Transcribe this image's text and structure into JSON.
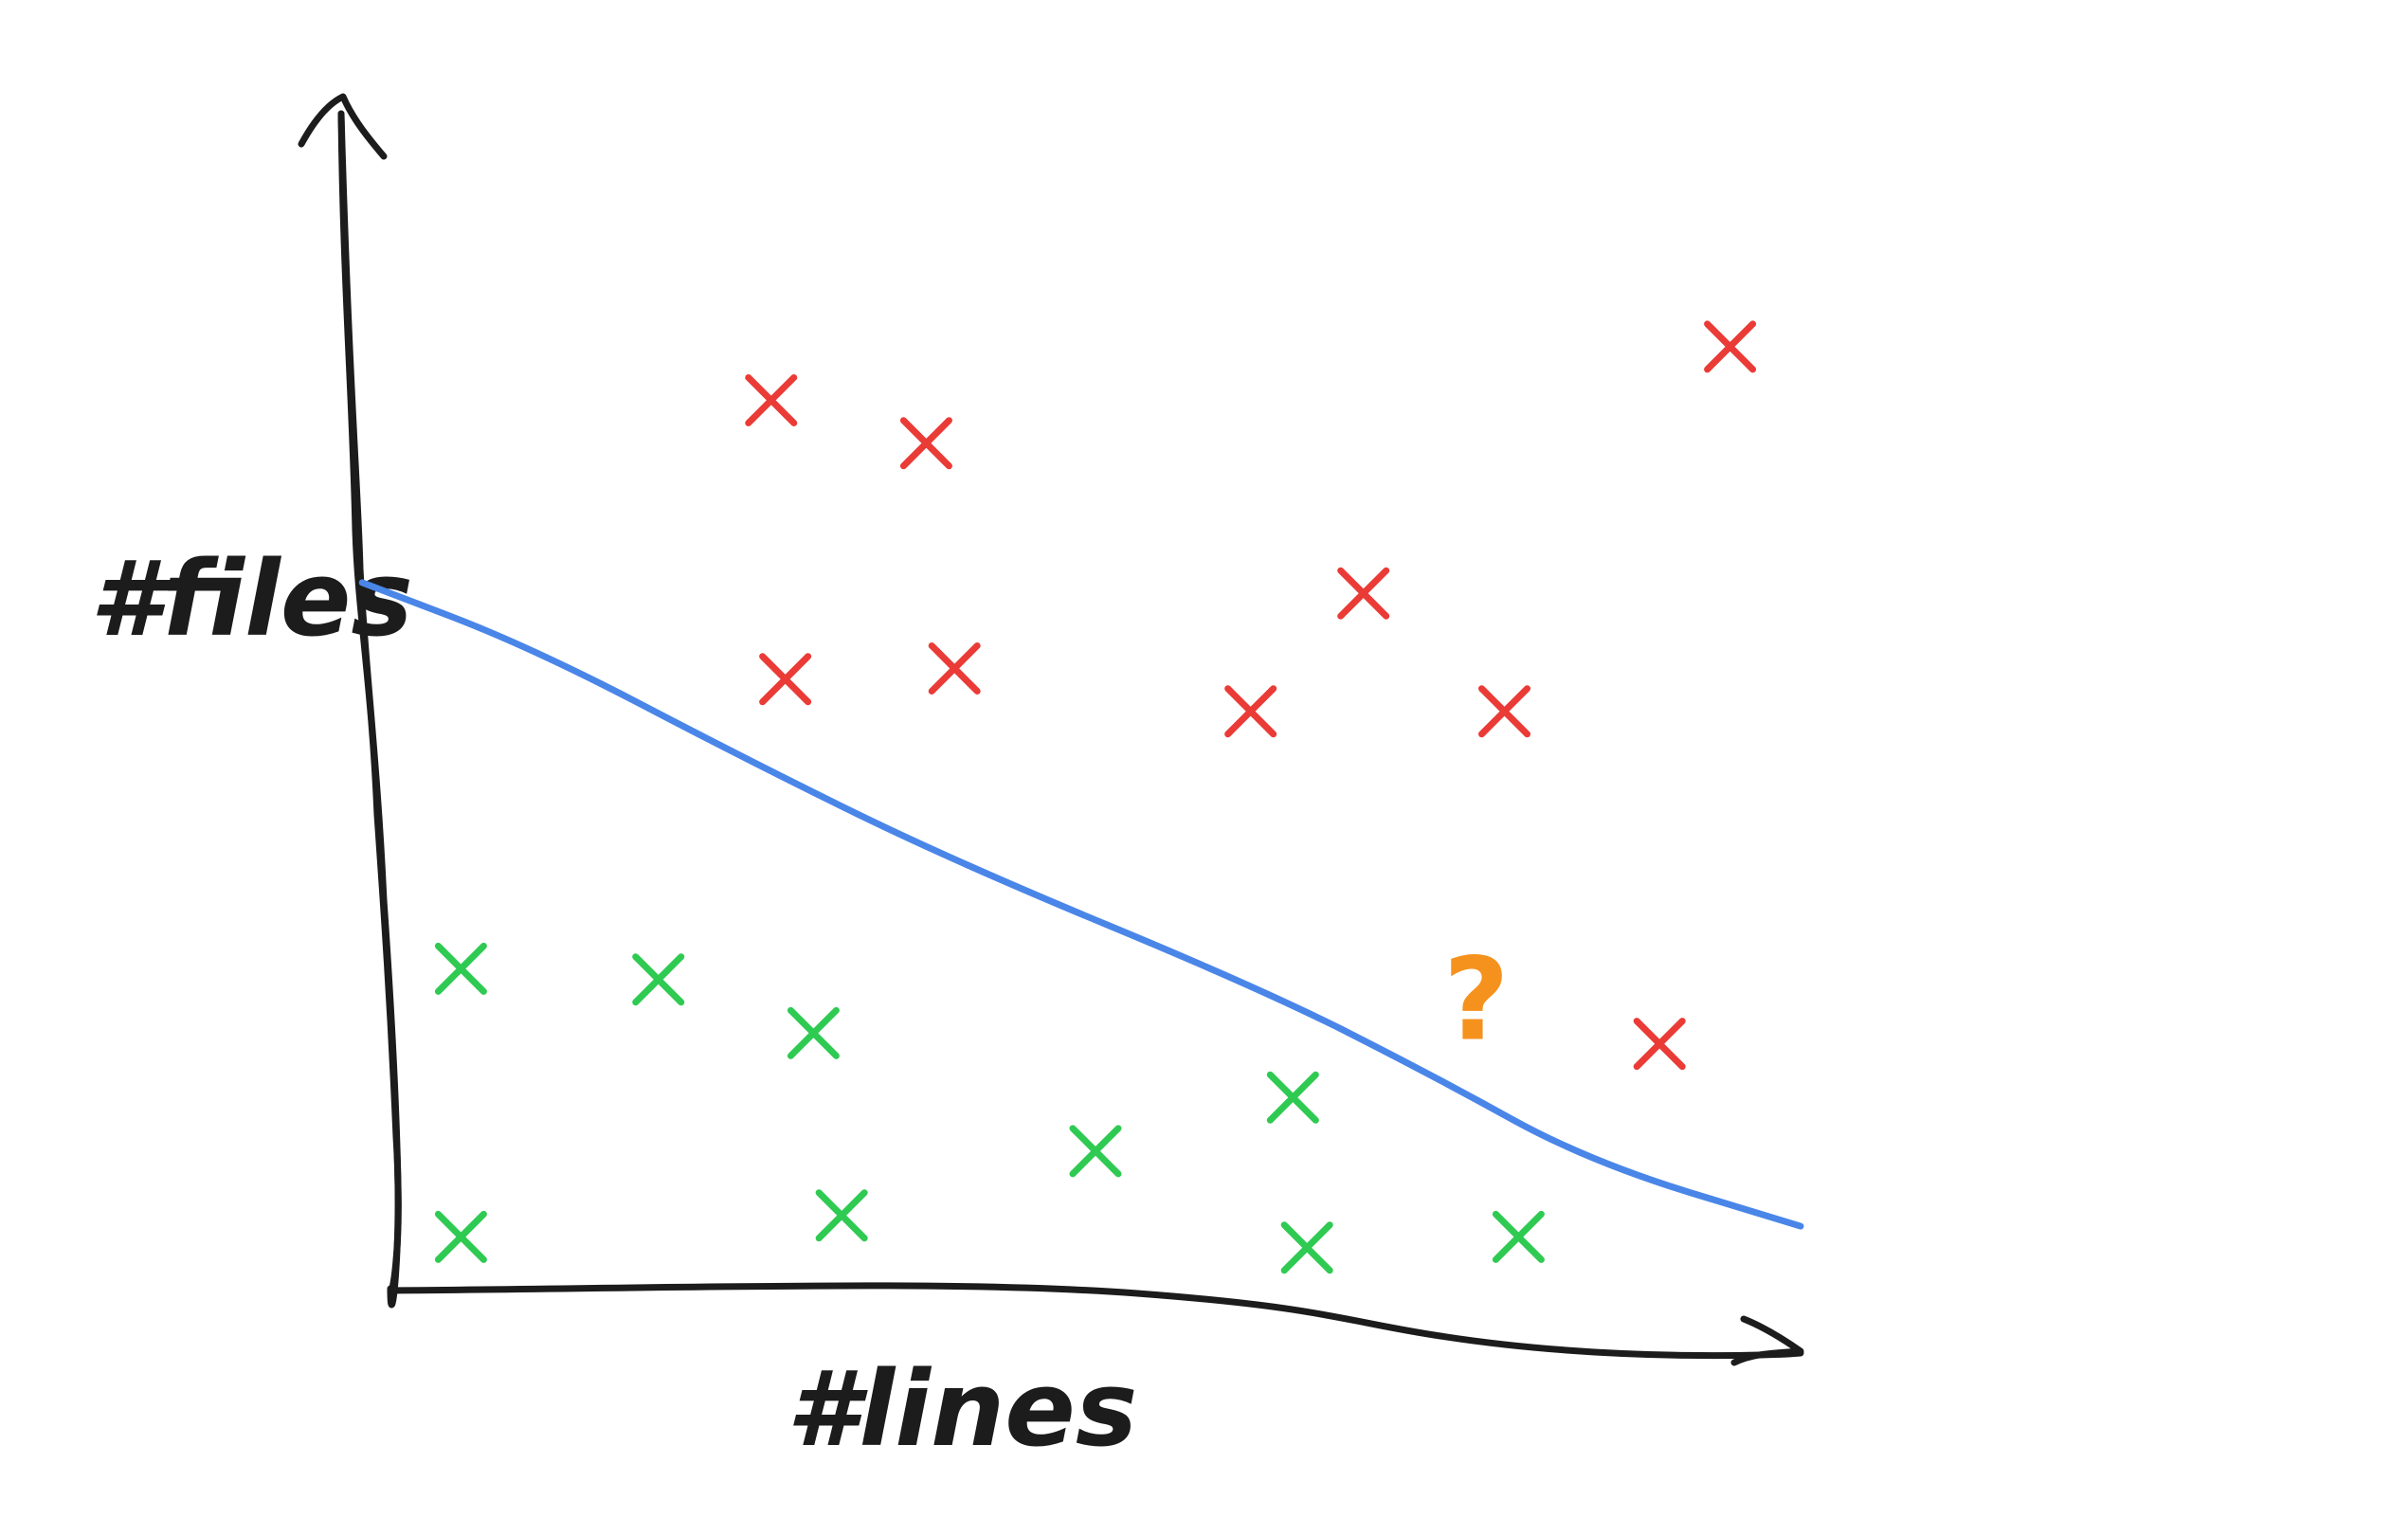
{
  "chart_data": {
    "type": "scatter",
    "title": "",
    "xlabel": "#lines",
    "ylabel": "#files",
    "xlim": [
      0,
      100
    ],
    "ylim": [
      0,
      100
    ],
    "grid": false,
    "legend": "none",
    "series": [
      {
        "color": "#ea3b36",
        "marker": "x",
        "points": [
          {
            "x": 27,
            "y": 83
          },
          {
            "x": 38,
            "y": 79
          },
          {
            "x": 95,
            "y": 88
          },
          {
            "x": 69,
            "y": 65
          },
          {
            "x": 28,
            "y": 57
          },
          {
            "x": 40,
            "y": 58
          },
          {
            "x": 61,
            "y": 54
          },
          {
            "x": 79,
            "y": 54
          },
          {
            "x": 90,
            "y": 23
          }
        ]
      },
      {
        "color": "#2fca52",
        "marker": "x",
        "points": [
          {
            "x": 5,
            "y": 30
          },
          {
            "x": 19,
            "y": 29
          },
          {
            "x": 30,
            "y": 24
          },
          {
            "x": 64,
            "y": 18
          },
          {
            "x": 50,
            "y": 13
          },
          {
            "x": 5,
            "y": 5
          },
          {
            "x": 32,
            "y": 7
          },
          {
            "x": 65,
            "y": 4
          },
          {
            "x": 80,
            "y": 5
          }
        ]
      },
      {
        "color": "#f5921e",
        "marker": "?",
        "label": "?",
        "points": [
          {
            "x": 77,
            "y": 27
          }
        ]
      }
    ],
    "boundary": {
      "color": "#4a86e8",
      "points": [
        {
          "x": -2,
          "y": 66
        },
        {
          "x": 10,
          "y": 60
        },
        {
          "x": 26,
          "y": 49
        },
        {
          "x": 40,
          "y": 40
        },
        {
          "x": 62,
          "y": 28
        },
        {
          "x": 74,
          "y": 20
        },
        {
          "x": 85,
          "y": 12
        },
        {
          "x": 100,
          "y": 6
        }
      ]
    }
  }
}
